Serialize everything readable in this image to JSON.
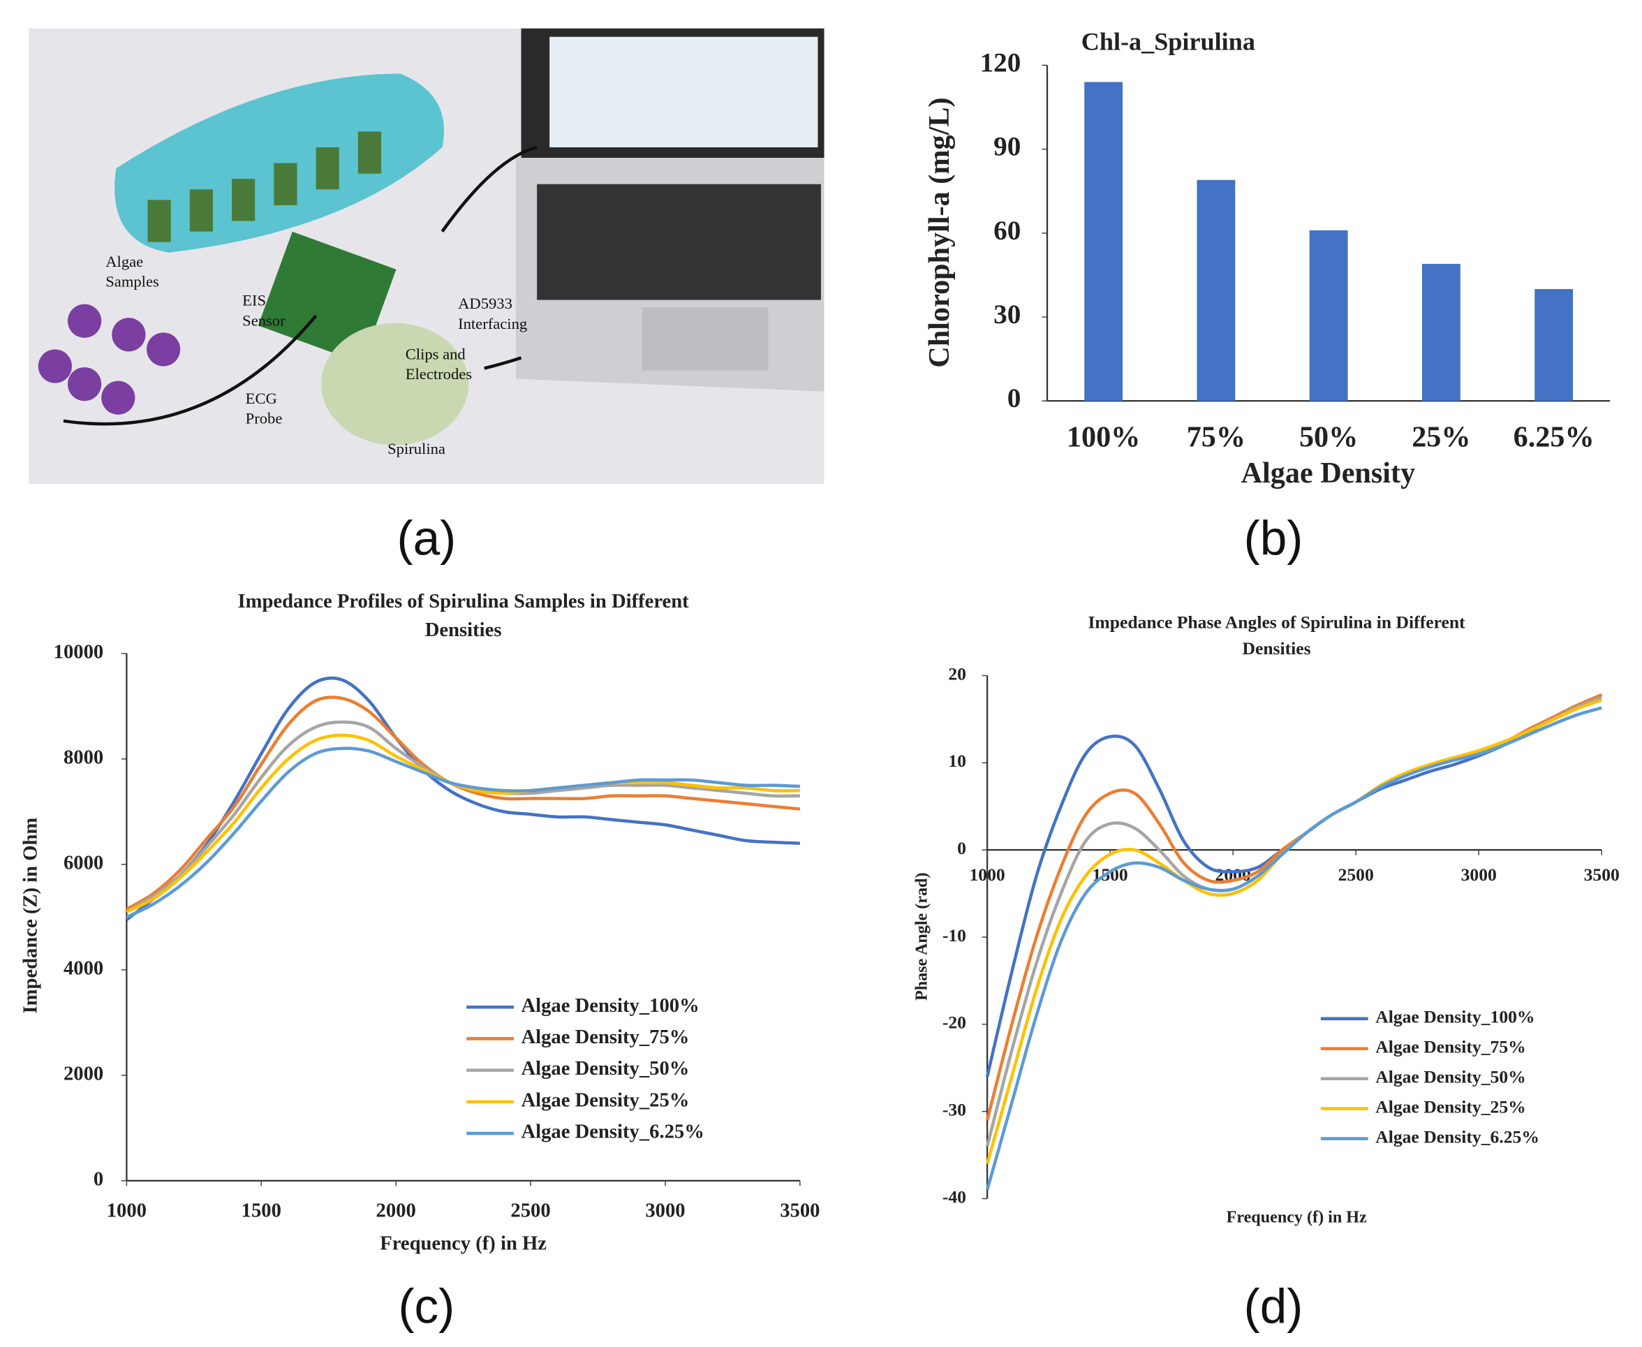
{
  "panel_labels": [
    "(a)",
    "(b)",
    "(c)",
    "(d)"
  ],
  "photo": {
    "annotations": [
      {
        "lines": [
          "Algae",
          "Samples"
        ]
      },
      {
        "lines": [
          "EIS",
          "Sensor"
        ]
      },
      {
        "lines": [
          "AD5933",
          "Interfacing"
        ]
      },
      {
        "lines": [
          "Clips and",
          "Electrodes"
        ]
      },
      {
        "lines": [
          "ECG",
          "Probe"
        ]
      },
      {
        "lines": [
          "Spirulina"
        ]
      }
    ]
  },
  "chart_data": [
    {
      "type": "bar",
      "title": [
        "Chl-a_Spirulina"
      ],
      "xlabel": "Algae Density",
      "ylabel": "Chlorophyll-a  (mg/L)",
      "categories": [
        "100%",
        "75%",
        "50%",
        "25%",
        "6.25%"
      ],
      "values": [
        114,
        79,
        61,
        49,
        40
      ],
      "color": "#4472c4",
      "ylim": [
        0,
        120
      ],
      "yticks": [
        0,
        30,
        60,
        90,
        120
      ],
      "grid": false
    },
    {
      "type": "line",
      "title": [
        "Impedance Profiles of Spirulina  Samples in Different",
        "Densities"
      ],
      "xlabel": "Frequency (f) in Hz",
      "ylabel": "Impedance (Z) in Ohm",
      "legend": "lower right",
      "grid": false,
      "x": [
        1000,
        1100,
        1200,
        1300,
        1400,
        1500,
        1600,
        1700,
        1800,
        1900,
        2000,
        2100,
        2200,
        2300,
        2400,
        2500,
        2600,
        2700,
        2800,
        2900,
        3000,
        3100,
        3200,
        3300,
        3400,
        3500
      ],
      "xlim": [
        1000,
        3500
      ],
      "xticks": [
        1000,
        1500,
        2000,
        2500,
        3000,
        3500
      ],
      "ylim": [
        0,
        10000
      ],
      "yticks": [
        0,
        2000,
        4000,
        6000,
        8000,
        10000
      ],
      "series": [
        {
          "name": "Algae Density_100%",
          "color": "#4472c4",
          "values": [
            4950,
            5350,
            5800,
            6400,
            7200,
            8100,
            8950,
            9450,
            9500,
            9100,
            8400,
            7800,
            7400,
            7150,
            7000,
            6950,
            6900,
            6900,
            6850,
            6800,
            6750,
            6650,
            6550,
            6450,
            6420,
            6400
          ]
        },
        {
          "name": "Algae Density_75%",
          "color": "#ed7d31",
          "values": [
            5150,
            5450,
            5900,
            6500,
            7100,
            7900,
            8650,
            9100,
            9150,
            8900,
            8400,
            7900,
            7550,
            7350,
            7250,
            7250,
            7250,
            7250,
            7300,
            7300,
            7300,
            7250,
            7200,
            7150,
            7100,
            7050
          ]
        },
        {
          "name": "Algae Density_50%",
          "color": "#a5a5a5",
          "values": [
            5100,
            5400,
            5800,
            6350,
            6950,
            7650,
            8250,
            8600,
            8700,
            8600,
            8200,
            7850,
            7550,
            7400,
            7350,
            7350,
            7400,
            7450,
            7500,
            7500,
            7500,
            7450,
            7400,
            7350,
            7300,
            7300
          ]
        },
        {
          "name": "Algae Density_25%",
          "color": "#ffc000",
          "values": [
            5100,
            5350,
            5750,
            6250,
            6800,
            7450,
            8000,
            8350,
            8450,
            8350,
            8050,
            7800,
            7550,
            7400,
            7350,
            7400,
            7450,
            7500,
            7550,
            7550,
            7550,
            7500,
            7450,
            7450,
            7400,
            7400
          ]
        },
        {
          "name": "Algae Density_6.25%",
          "color": "#5b9bd5",
          "values": [
            5000,
            5250,
            5600,
            6050,
            6600,
            7200,
            7750,
            8100,
            8200,
            8150,
            7950,
            7750,
            7550,
            7450,
            7400,
            7400,
            7450,
            7500,
            7550,
            7600,
            7600,
            7600,
            7550,
            7500,
            7500,
            7480
          ]
        }
      ]
    },
    {
      "type": "line",
      "title": [
        "Impedance Phase Angles of Spirulina  in Different",
        "Densities"
      ],
      "xlabel": "Frequency (f) in Hz",
      "ylabel": "Phase Angle (rad)",
      "legend": "lower right",
      "grid": false,
      "x": [
        1000,
        1100,
        1200,
        1300,
        1400,
        1500,
        1600,
        1700,
        1800,
        1900,
        2000,
        2100,
        2200,
        2300,
        2400,
        2500,
        2600,
        2700,
        2800,
        2900,
        3000,
        3100,
        3200,
        3300,
        3400,
        3500
      ],
      "xlim": [
        1000,
        3500
      ],
      "xticks": [
        1000,
        1500,
        2000,
        2500,
        3000,
        3500
      ],
      "ylim": [
        -40,
        20
      ],
      "yticks": [
        -40,
        -30,
        -20,
        -10,
        0,
        10,
        20
      ],
      "series": [
        {
          "name": "Algae Density_100%",
          "color": "#4472c4",
          "values": [
            -26,
            -14,
            -3,
            5,
            11,
            13,
            12,
            7,
            1,
            -2,
            -2.5,
            -2,
            0,
            2,
            4,
            5.5,
            7,
            8,
            9,
            9.8,
            10.8,
            12,
            13.5,
            15,
            16.5,
            17.8
          ]
        },
        {
          "name": "Algae Density_75%",
          "color": "#ed7d31",
          "values": [
            -31,
            -20,
            -10,
            -2,
            4,
            6.5,
            6.5,
            3,
            -1.5,
            -3.5,
            -3.5,
            -2.5,
            0,
            2,
            4,
            5.5,
            7.3,
            8.6,
            9.6,
            10.4,
            11.2,
            12.3,
            13.8,
            15.2,
            16.6,
            17.8
          ]
        },
        {
          "name": "Algae Density_50%",
          "color": "#a5a5a5",
          "values": [
            -34,
            -23,
            -13,
            -5,
            1,
            3,
            2.5,
            0,
            -3,
            -4.5,
            -4.5,
            -3,
            -0.5,
            2,
            4,
            5.5,
            7.3,
            8.6,
            9.6,
            10.4,
            11.2,
            12.3,
            13.6,
            15,
            16.4,
            17.5
          ]
        },
        {
          "name": "Algae Density_25%",
          "color": "#ffc000",
          "values": [
            -36,
            -26,
            -16,
            -8,
            -3,
            -0.5,
            0,
            -1.5,
            -3.5,
            -5,
            -5,
            -3.5,
            -0.5,
            2,
            4,
            5.5,
            7.4,
            8.8,
            9.8,
            10.6,
            11.4,
            12.4,
            13.6,
            14.9,
            16.2,
            17.2
          ]
        },
        {
          "name": "Algae Density_6.25%",
          "color": "#5b9bd5",
          "values": [
            -39,
            -29,
            -19,
            -10.5,
            -5,
            -2.5,
            -1.5,
            -2,
            -3.5,
            -4.5,
            -4.5,
            -3,
            -0.5,
            2,
            4,
            5.5,
            7.2,
            8.5,
            9.5,
            10.3,
            11,
            12,
            13.2,
            14.4,
            15.5,
            16.3
          ]
        }
      ]
    }
  ]
}
